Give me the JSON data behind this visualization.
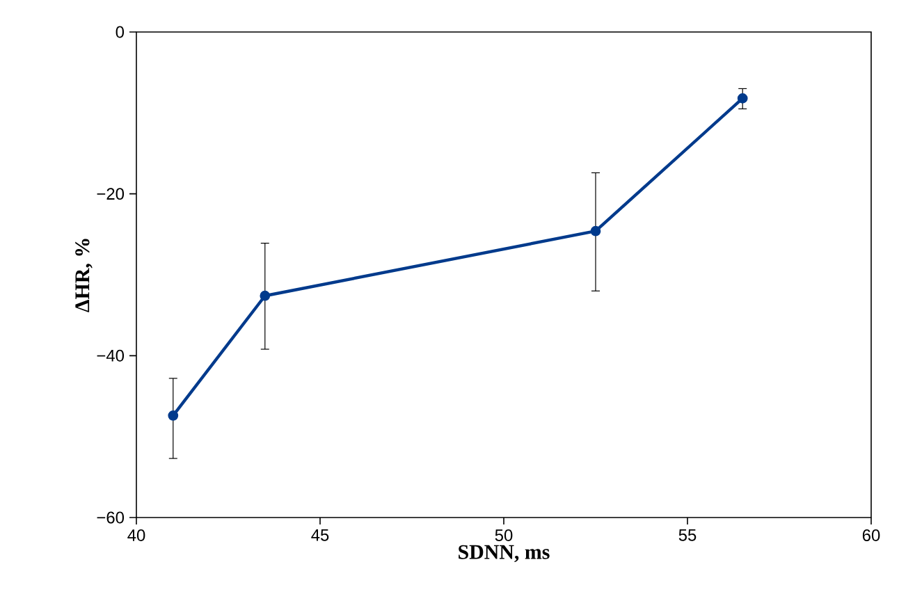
{
  "chart_data": {
    "type": "line",
    "xlabel": "SDNN, ms",
    "ylabel": "ΔHR, %",
    "x": [
      41,
      43.5,
      52.5,
      56.5
    ],
    "series": [
      {
        "color": "#003a8c",
        "values": [
          -47.4,
          -32.6,
          -24.6,
          -8.2
        ],
        "errors": [
          [
            -52.7,
            -42.8
          ],
          [
            -39.2,
            -26.1
          ],
          [
            -32.0,
            -17.4
          ],
          [
            -9.5,
            -7.0
          ]
        ]
      }
    ],
    "xlim": [
      40,
      60
    ],
    "ylim": [
      -60,
      0
    ],
    "xticks": [
      40,
      45,
      50,
      55,
      60
    ],
    "yticks": [
      {
        "value": -60,
        "label": "−60"
      },
      {
        "value": -40,
        "label": "−40"
      },
      {
        "value": -20,
        "label": "−20"
      },
      0
    ],
    "marker": "circle",
    "line_style": "solid",
    "grid": false
  }
}
